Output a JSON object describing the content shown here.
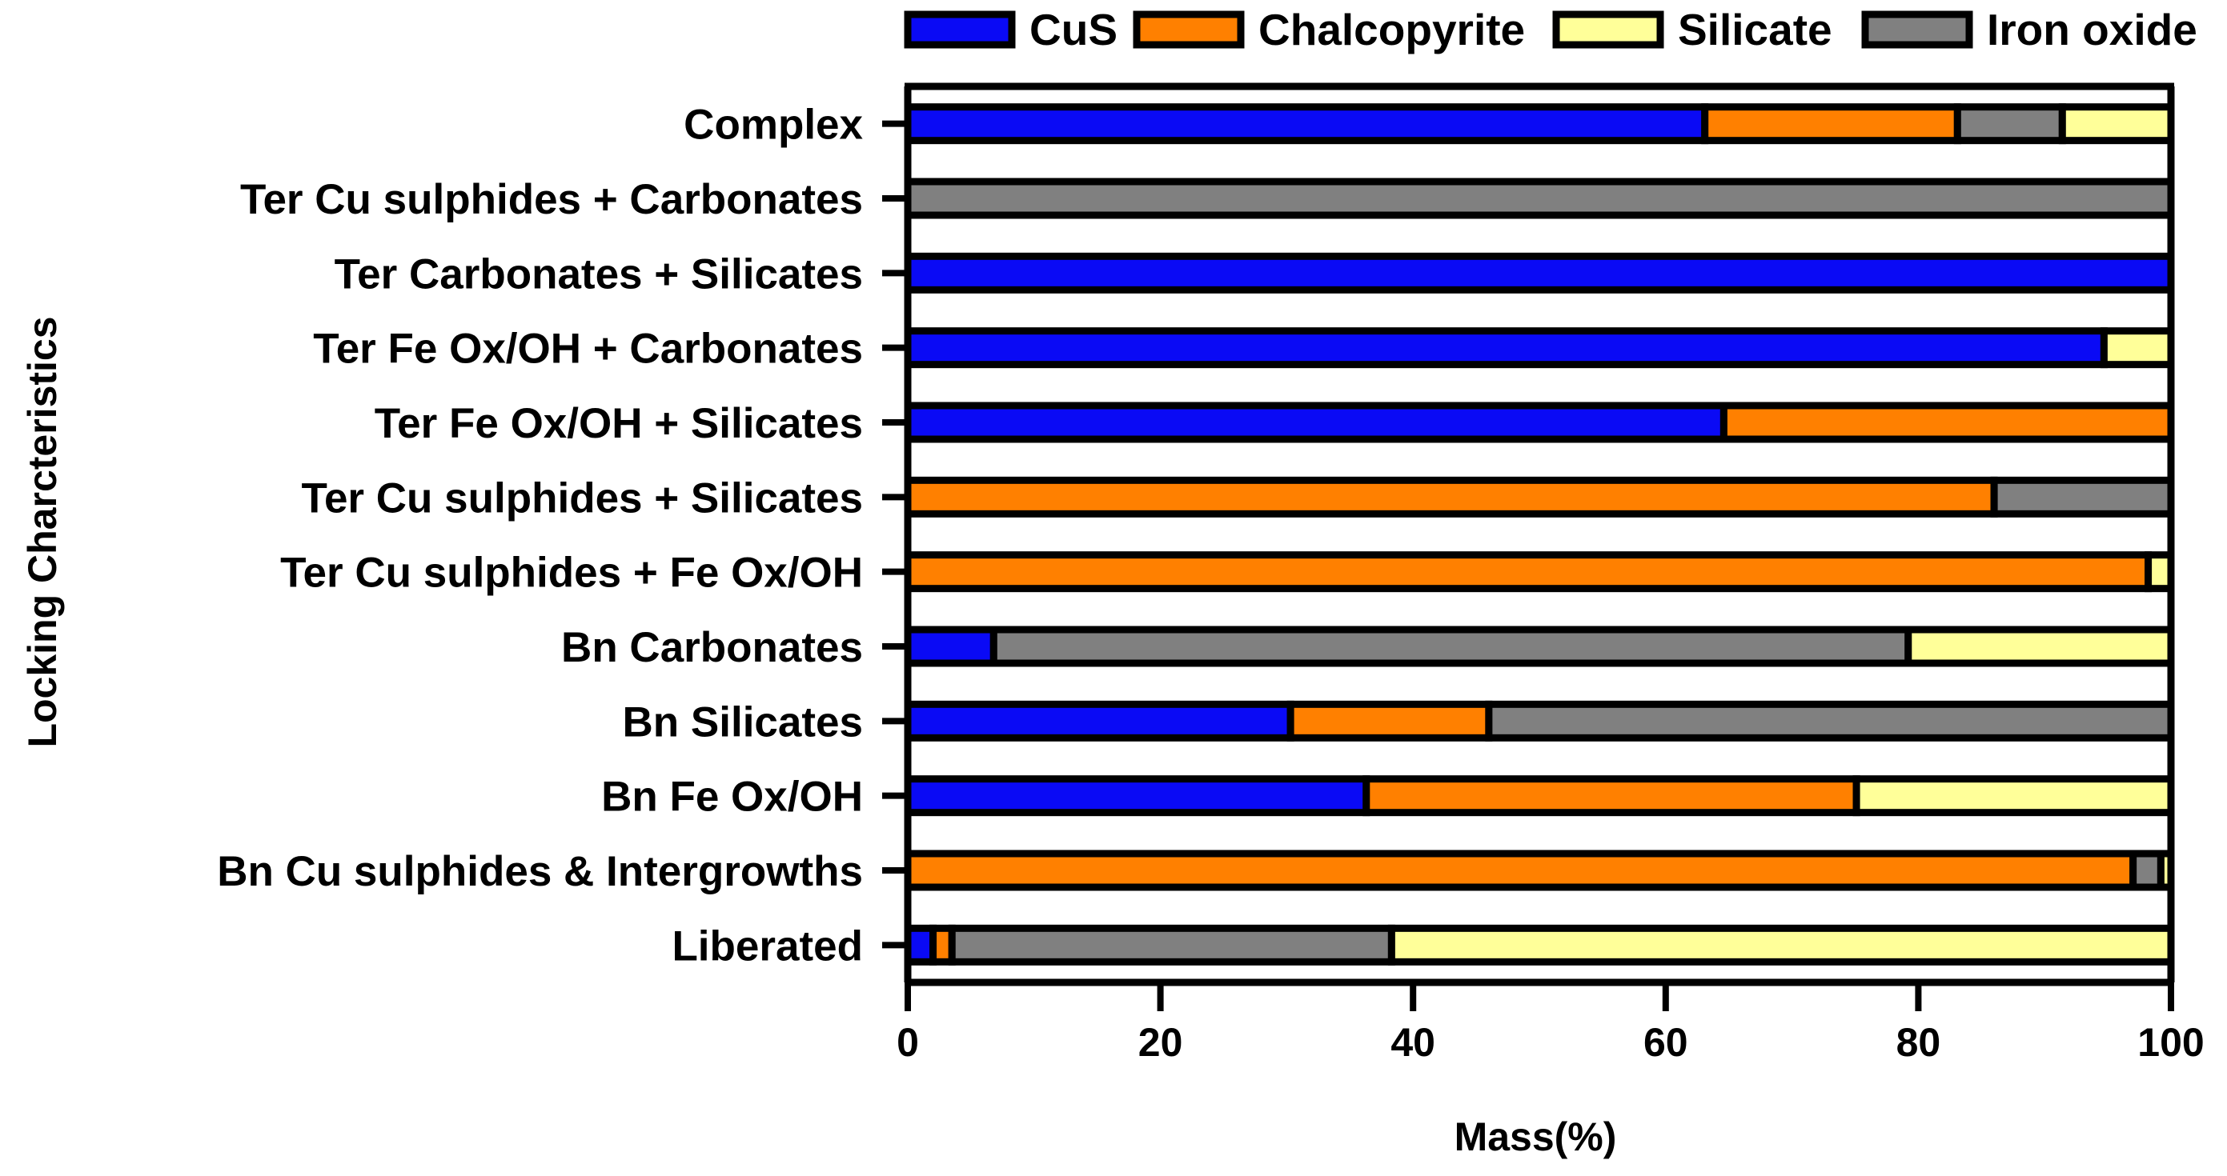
{
  "chart_data": {
    "type": "bar",
    "orientation": "horizontal",
    "stacked": true,
    "title": "",
    "xlabel": "Mass(%)",
    "ylabel": "Locking Charcteristics",
    "xlim": [
      0,
      100
    ],
    "xticks": [
      0,
      20,
      40,
      60,
      80,
      100
    ],
    "grid": false,
    "legend_position": "top",
    "categories": [
      "Complex",
      "Ter Cu sulphides + Carbonates",
      "Ter Carbonates + Silicates",
      "Ter Fe Ox/OH + Carbonates",
      "Ter Fe Ox/OH + Silicates",
      "Ter Cu sulphides + Silicates",
      "Ter Cu sulphides + Fe Ox/OH",
      "Bn Carbonates",
      "Bn Silicates",
      "Bn Fe Ox/OH",
      "Bn Cu sulphides & Intergrowths",
      "Liberated"
    ],
    "series": [
      {
        "name": "CuS",
        "color": "#0A0AF5",
        "values": [
          63.1,
          0,
          100,
          94.7,
          64.6,
          0,
          0,
          6.8,
          30.3,
          36.3,
          0,
          2.0
        ]
      },
      {
        "name": "Chalcopyrite",
        "color": "#FF8000",
        "values": [
          20.0,
          0,
          0,
          0,
          35.4,
          86.0,
          98.2,
          0,
          15.7,
          38.8,
          97.0,
          1.5
        ]
      },
      {
        "name": "Iron oxide",
        "color": "#808080",
        "values": [
          8.3,
          100,
          0,
          0,
          0,
          14.0,
          0,
          72.4,
          54.0,
          0,
          2.2,
          34.8
        ]
      },
      {
        "name": "Silicate",
        "color": "#FFFF99",
        "values": [
          8.6,
          0,
          0,
          5.3,
          0,
          0,
          1.8,
          20.8,
          0,
          24.9,
          0.8,
          61.7
        ]
      }
    ],
    "legend": [
      {
        "name": "CuS",
        "color": "#0A0AF5"
      },
      {
        "name": "Chalcopyrite",
        "color": "#FF8000"
      },
      {
        "name": "Silicate",
        "color": "#FFFF99"
      },
      {
        "name": "Iron oxide",
        "color": "#808080"
      }
    ]
  }
}
